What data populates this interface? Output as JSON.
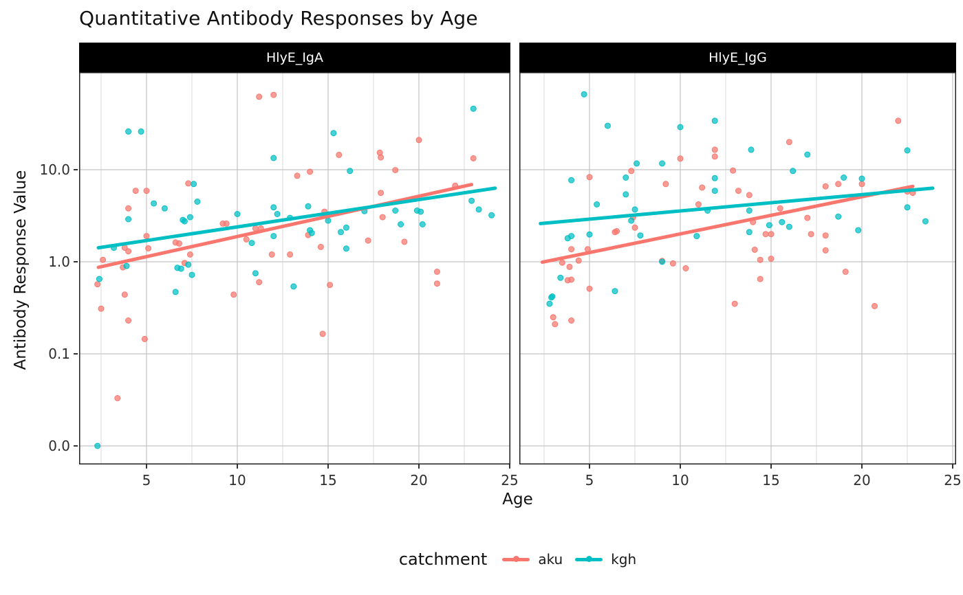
{
  "title": "Quantitative Antibody Responses by Age",
  "axes": {
    "x": {
      "title": "Age",
      "ticks": [
        5,
        10,
        15,
        20,
        25
      ],
      "minor_ticks": [
        2.5,
        7.5,
        12.5,
        17.5,
        22.5
      ],
      "domain": [
        1.3,
        25.1
      ]
    },
    "y": {
      "title": "Antibody Response Value",
      "ticks": [
        {
          "label": "10.0",
          "value": 10
        },
        {
          "label": "1.0",
          "value": 1
        },
        {
          "label": "0.1",
          "value": 0.1
        },
        {
          "label": "0.0",
          "value": 0
        }
      ],
      "scale": "pseudo-log10"
    }
  },
  "legend": {
    "title": "catchment",
    "items": [
      {
        "label": "aku",
        "color": "#F8766D"
      },
      {
        "label": "kgh",
        "color": "#00BFC4"
      }
    ]
  },
  "colors": {
    "aku": "#F8766D",
    "kgh": "#00BFC4",
    "strip_bg": "#000000",
    "strip_text": "#ffffff",
    "grid_major": "#c3c3c3",
    "grid_minor": "#dedede",
    "panel_border": "#1f1f1f",
    "panel_bg": "#ffffff"
  },
  "chart_data": [
    {
      "type": "scatter",
      "facet": "HlyE_IgA",
      "series": [
        {
          "name": "aku",
          "points": [
            [
              11.2,
              62
            ],
            [
              12.0,
              65
            ],
            [
              20.0,
              21
            ],
            [
              15.6,
              14.5
            ],
            [
              17.85,
              15.3
            ],
            [
              17.9,
              13.6
            ],
            [
              23.0,
              13.3
            ],
            [
              13.3,
              8.6
            ],
            [
              14.0,
              9.5
            ],
            [
              18.7,
              9.9
            ],
            [
              7.3,
              7.1
            ],
            [
              4.4,
              5.9
            ],
            [
              5.0,
              5.9
            ],
            [
              17.9,
              5.6
            ],
            [
              4.0,
              3.8
            ],
            [
              14.8,
              3.5
            ],
            [
              18.0,
              3.05
            ],
            [
              9.2,
              2.6
            ],
            [
              9.4,
              2.6
            ],
            [
              11.0,
              2.3
            ],
            [
              11.3,
              2.3
            ],
            [
              13.9,
              1.95
            ],
            [
              10.5,
              1.75
            ],
            [
              17.2,
              1.7
            ],
            [
              19.2,
              1.65
            ],
            [
              6.6,
              1.62
            ],
            [
              6.8,
              1.58
            ],
            [
              14.6,
              1.45
            ],
            [
              5.0,
              1.9
            ],
            [
              3.8,
              1.42
            ],
            [
              5.1,
              1.4
            ],
            [
              4.0,
              1.3
            ],
            [
              7.4,
              1.2
            ],
            [
              12.9,
              1.2
            ],
            [
              11.9,
              1.2
            ],
            [
              2.6,
              1.05
            ],
            [
              7.1,
              0.97
            ],
            [
              3.7,
              0.87
            ],
            [
              21.0,
              0.78
            ],
            [
              11.2,
              0.6
            ],
            [
              21.0,
              0.58
            ],
            [
              2.3,
              0.57
            ],
            [
              15.1,
              0.56
            ],
            [
              3.8,
              0.44
            ],
            [
              9.8,
              0.44
            ],
            [
              2.5,
              0.31
            ],
            [
              4.0,
              0.23
            ],
            [
              14.7,
              0.165
            ],
            [
              4.9,
              0.145
            ],
            [
              3.4,
              0.033
            ],
            [
              22.0,
              6.7
            ]
          ]
        },
        {
          "name": "kgh",
          "points": [
            [
              23.0,
              46
            ],
            [
              4.0,
              26
            ],
            [
              4.7,
              26
            ],
            [
              15.3,
              25
            ],
            [
              12.0,
              13.4
            ],
            [
              16.2,
              9.7
            ],
            [
              7.6,
              7.0
            ],
            [
              22.9,
              4.6
            ],
            [
              7.8,
              4.5
            ],
            [
              5.4,
              4.3
            ],
            [
              13.9,
              4.0
            ],
            [
              12.0,
              3.9
            ],
            [
              6.0,
              3.8
            ],
            [
              23.3,
              3.7
            ],
            [
              18.7,
              3.6
            ],
            [
              19.9,
              3.6
            ],
            [
              17.0,
              3.55
            ],
            [
              20.1,
              3.5
            ],
            [
              10.0,
              3.3
            ],
            [
              12.2,
              3.3
            ],
            [
              24.0,
              3.2
            ],
            [
              7.4,
              3.05
            ],
            [
              12.9,
              3.0
            ],
            [
              4.0,
              2.9
            ],
            [
              7.0,
              2.85
            ],
            [
              7.1,
              2.75
            ],
            [
              15.0,
              2.8
            ],
            [
              19.0,
              2.55
            ],
            [
              20.2,
              2.55
            ],
            [
              16.0,
              2.35
            ],
            [
              14.0,
              2.2
            ],
            [
              15.7,
              2.1
            ],
            [
              14.1,
              2.05
            ],
            [
              12.0,
              1.9
            ],
            [
              10.8,
              1.6
            ],
            [
              3.2,
              1.42
            ],
            [
              16.0,
              1.39
            ],
            [
              7.3,
              0.93
            ],
            [
              3.9,
              0.9
            ],
            [
              6.7,
              0.86
            ],
            [
              6.9,
              0.84
            ],
            [
              11.0,
              0.75
            ],
            [
              7.5,
              0.72
            ],
            [
              2.4,
              0.65
            ],
            [
              13.1,
              0.54
            ],
            [
              6.6,
              0.47
            ],
            [
              2.3,
              0.0
            ]
          ]
        }
      ],
      "trend": [
        {
          "name": "aku",
          "from": [
            2.35,
            0.87
          ],
          "to": [
            22.9,
            6.9
          ]
        },
        {
          "name": "kgh",
          "from": [
            2.35,
            1.42
          ],
          "to": [
            24.2,
            6.3
          ]
        }
      ]
    },
    {
      "type": "scatter",
      "facet": "HlyE_IgG",
      "series": [
        {
          "name": "aku",
          "points": [
            [
              22.0,
              34
            ],
            [
              16.0,
              20
            ],
            [
              11.9,
              16.5
            ],
            [
              11.9,
              13.9
            ],
            [
              10.0,
              13.2
            ],
            [
              12.9,
              9.8
            ],
            [
              7.3,
              9.7
            ],
            [
              5.0,
              8.3
            ],
            [
              9.2,
              7.0
            ],
            [
              18.7,
              7.0
            ],
            [
              20.0,
              7.0
            ],
            [
              18.0,
              6.6
            ],
            [
              11.2,
              6.4
            ],
            [
              13.2,
              5.9
            ],
            [
              22.5,
              5.8
            ],
            [
              22.8,
              5.6
            ],
            [
              13.8,
              5.3
            ],
            [
              11.0,
              4.2
            ],
            [
              15.5,
              3.8
            ],
            [
              7.4,
              3.05
            ],
            [
              17.0,
              3.0
            ],
            [
              14.0,
              2.7
            ],
            [
              7.5,
              2.35
            ],
            [
              6.4,
              2.1
            ],
            [
              6.5,
              2.15
            ],
            [
              14.7,
              2.0
            ],
            [
              15.0,
              2.0
            ],
            [
              17.2,
              2.0
            ],
            [
              18.0,
              1.93
            ],
            [
              4.0,
              1.37
            ],
            [
              4.9,
              1.37
            ],
            [
              14.1,
              1.35
            ],
            [
              18.0,
              1.33
            ],
            [
              15.0,
              1.08
            ],
            [
              4.4,
              1.03
            ],
            [
              14.4,
              1.05
            ],
            [
              9.0,
              1.02
            ],
            [
              3.5,
              0.98
            ],
            [
              9.6,
              0.96
            ],
            [
              3.9,
              0.88
            ],
            [
              10.3,
              0.85
            ],
            [
              19.1,
              0.78
            ],
            [
              14.4,
              0.65
            ],
            [
              3.8,
              0.63
            ],
            [
              4.0,
              0.64
            ],
            [
              5.0,
              0.51
            ],
            [
              13.0,
              0.35
            ],
            [
              20.7,
              0.33
            ],
            [
              3.0,
              0.25
            ],
            [
              4.0,
              0.23
            ],
            [
              3.1,
              0.21
            ]
          ]
        },
        {
          "name": "kgh",
          "points": [
            [
              4.7,
              66
            ],
            [
              11.9,
              34
            ],
            [
              6.0,
              30
            ],
            [
              10.0,
              29
            ],
            [
              13.9,
              16.5
            ],
            [
              22.5,
              16.2
            ],
            [
              17.0,
              14.6
            ],
            [
              7.6,
              11.7
            ],
            [
              9.0,
              11.7
            ],
            [
              16.2,
              9.7
            ],
            [
              19.0,
              8.2
            ],
            [
              7.0,
              8.2
            ],
            [
              11.9,
              8.1
            ],
            [
              20.0,
              8.0
            ],
            [
              4.0,
              7.7
            ],
            [
              11.9,
              5.9
            ],
            [
              7.0,
              5.4
            ],
            [
              5.4,
              4.2
            ],
            [
              22.5,
              3.9
            ],
            [
              7.5,
              3.7
            ],
            [
              13.8,
              3.6
            ],
            [
              11.5,
              3.6
            ],
            [
              18.7,
              3.1
            ],
            [
              7.3,
              2.8
            ],
            [
              23.5,
              2.75
            ],
            [
              15.6,
              2.7
            ],
            [
              14.9,
              2.5
            ],
            [
              16.0,
              2.4
            ],
            [
              19.8,
              2.2
            ],
            [
              13.8,
              2.1
            ],
            [
              5.0,
              1.98
            ],
            [
              7.8,
              1.93
            ],
            [
              4.0,
              1.9
            ],
            [
              10.9,
              1.9
            ],
            [
              3.8,
              1.8
            ],
            [
              9.0,
              1.0
            ],
            [
              3.4,
              0.67
            ],
            [
              6.4,
              0.48
            ],
            [
              2.9,
              0.41
            ],
            [
              2.95,
              0.42
            ],
            [
              2.8,
              0.35
            ]
          ]
        }
      ],
      "trend": [
        {
          "name": "aku",
          "from": [
            2.4,
            0.99
          ],
          "to": [
            22.8,
            6.6
          ]
        },
        {
          "name": "kgh",
          "from": [
            2.3,
            2.6
          ],
          "to": [
            23.9,
            6.3
          ]
        }
      ]
    }
  ]
}
